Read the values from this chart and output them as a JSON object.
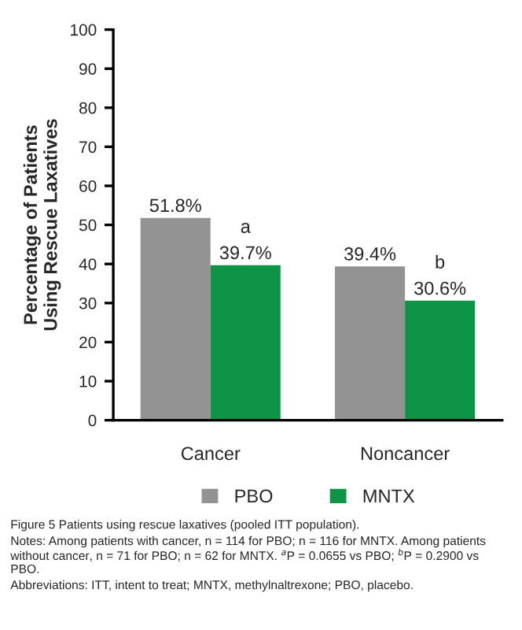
{
  "chart_data": {
    "type": "bar",
    "ylabel": "Percentage of Patients\nUsing Rescue Laxatives",
    "categories": [
      "Cancer",
      "Noncancer"
    ],
    "series": [
      {
        "name": "PBO",
        "color": "#939393",
        "values": [
          51.8,
          39.4
        ],
        "value_labels": [
          "51.8%",
          "39.4%"
        ]
      },
      {
        "name": "MNTX",
        "color": "#0e9447",
        "values": [
          39.7,
          30.6
        ],
        "value_labels": [
          "39.7%",
          "30.6%"
        ]
      }
    ],
    "ylim": [
      0,
      100
    ],
    "yticks": [
      0,
      10,
      20,
      30,
      40,
      50,
      60,
      70,
      80,
      90,
      100
    ],
    "grid": false,
    "legend": "bottom",
    "annotations": [
      {
        "text": "a",
        "x": "Cancer",
        "y": 39.7
      },
      {
        "text": "b",
        "x": "Noncancer",
        "y": 30.6
      },
      "Figure 5 Patients using rescue laxatives (pooled ITT population).",
      "Notes: Among patients with cancer, n = 114 for PBO; n = 116 for MNTX. Among patients without cancer, n = 71 for PBO; n = 62 for MNTX. $^{a}$P = 0.0655 vs PBO; $^{b}$P = 0.2900 vs PBO.",
      "Abbreviations: ITT, intent to treat; MNTX, methylnaltrexone; PBO, placebo."
    ]
  }
}
